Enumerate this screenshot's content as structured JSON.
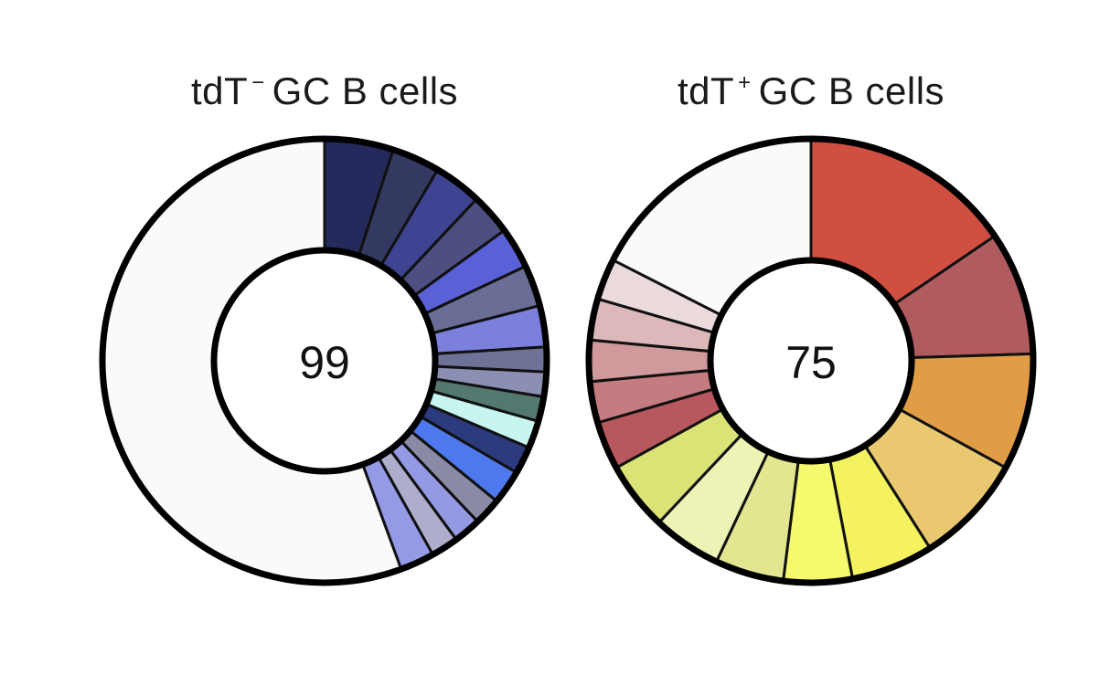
{
  "chart_data": [
    {
      "type": "pie",
      "variant": "donut",
      "title_main": "tdT",
      "title_sup": "−",
      "title_rest": "GC B cells",
      "center_label": "99",
      "slices": [
        {
          "value": 0.05,
          "color": "#252a5c"
        },
        {
          "value": 0.035,
          "color": "#333961"
        },
        {
          "value": 0.035,
          "color": "#3e4491"
        },
        {
          "value": 0.03,
          "color": "#4c4f80"
        },
        {
          "value": 0.03,
          "color": "#5a60d6"
        },
        {
          "value": 0.03,
          "color": "#6a6e96"
        },
        {
          "value": 0.03,
          "color": "#7b80dc"
        },
        {
          "value": 0.018,
          "color": "#6e7297"
        },
        {
          "value": 0.018,
          "color": "#8b8fb3"
        },
        {
          "value": 0.018,
          "color": "#53786f"
        },
        {
          "value": 0.02,
          "color": "#c7f5ef"
        },
        {
          "value": 0.02,
          "color": "#2c3a7e"
        },
        {
          "value": 0.025,
          "color": "#4d78ee"
        },
        {
          "value": 0.02,
          "color": "#888aa6"
        },
        {
          "value": 0.02,
          "color": "#9499e4"
        },
        {
          "value": 0.02,
          "color": "#acaecb"
        },
        {
          "value": 0.025,
          "color": "#949ae6"
        },
        {
          "value": 0.556,
          "color": "#fafafa"
        }
      ]
    },
    {
      "type": "pie",
      "variant": "donut",
      "title_main": "tdT",
      "title_sup": "+",
      "title_rest": "GC B cells",
      "center_label": "75",
      "slices": [
        {
          "value": 0.155,
          "color": "#d04f41"
        },
        {
          "value": 0.09,
          "color": "#b05c5e"
        },
        {
          "value": 0.085,
          "color": "#e09d45"
        },
        {
          "value": 0.08,
          "color": "#e9c870"
        },
        {
          "value": 0.06,
          "color": "#f4f35f"
        },
        {
          "value": 0.05,
          "color": "#f6f96d"
        },
        {
          "value": 0.05,
          "color": "#e2e690"
        },
        {
          "value": 0.05,
          "color": "#eef2b5"
        },
        {
          "value": 0.05,
          "color": "#dbe276"
        },
        {
          "value": 0.035,
          "color": "#b8585e"
        },
        {
          "value": 0.03,
          "color": "#c57c80"
        },
        {
          "value": 0.03,
          "color": "#d09a9c"
        },
        {
          "value": 0.03,
          "color": "#dcb8ba"
        },
        {
          "value": 0.03,
          "color": "#ebdadc"
        },
        {
          "value": 0.175,
          "color": "#fafafa"
        }
      ]
    }
  ]
}
